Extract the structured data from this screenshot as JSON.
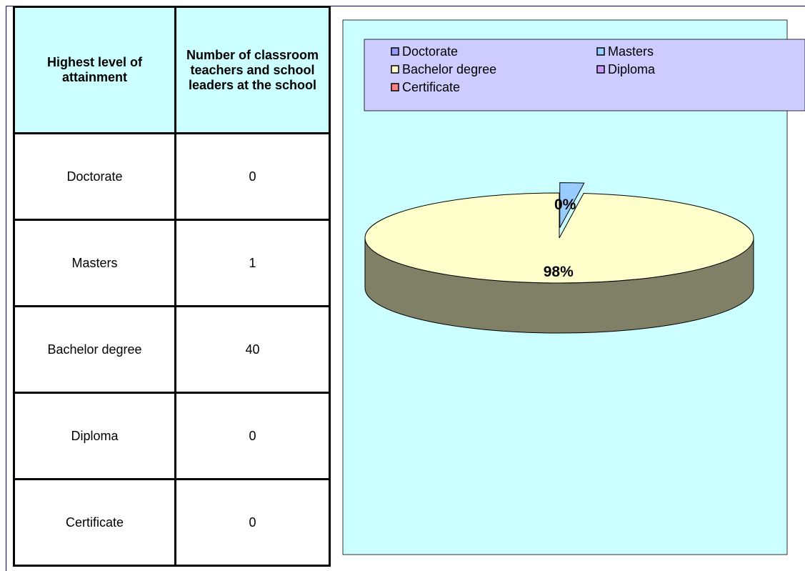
{
  "table": {
    "header": [
      "Highest level of attainment",
      "Number of classroom teachers and school leaders at the school"
    ],
    "rows": [
      [
        "Doctorate",
        "0"
      ],
      [
        "Masters",
        "1"
      ],
      [
        "Bachelor degree",
        "40"
      ],
      [
        "Diploma",
        "0"
      ],
      [
        "Certificate",
        "0"
      ]
    ]
  },
  "chart_data": {
    "type": "pie",
    "style": "3d",
    "categories": [
      "Doctorate",
      "Masters",
      "Bachelor degree",
      "Diploma",
      "Certificate"
    ],
    "values": [
      0,
      2,
      98,
      0,
      0
    ],
    "value_labels": [
      "0%",
      null,
      "98%",
      null,
      null
    ],
    "colors": [
      "#9999ff",
      "#99ccff",
      "#ffffcc",
      "#cc99ff",
      "#ff8080"
    ],
    "exploded": [
      false,
      true,
      false,
      false,
      false
    ],
    "legend": "top"
  }
}
